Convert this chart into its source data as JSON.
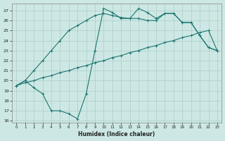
{
  "xlabel": "Humidex (Indice chaleur)",
  "background_color": "#cde8e4",
  "grid_color": "#aaccC8",
  "line_color": "#1e7570",
  "xlim": [
    -0.5,
    23.5
  ],
  "ylim": [
    15.8,
    27.7
  ],
  "xticks": [
    0,
    1,
    2,
    3,
    4,
    5,
    6,
    7,
    8,
    9,
    10,
    11,
    12,
    13,
    14,
    15,
    16,
    17,
    18,
    19,
    20,
    21,
    22,
    23
  ],
  "yticks": [
    16,
    17,
    18,
    19,
    20,
    21,
    22,
    23,
    24,
    25,
    26,
    27
  ],
  "line1_x": [
    0,
    1,
    2,
    3,
    4,
    5,
    6,
    7,
    8,
    9,
    10,
    11,
    12,
    13,
    14,
    15,
    16,
    17,
    18,
    19,
    20,
    21,
    22,
    23
  ],
  "line1_y": [
    19.5,
    19.8,
    20.0,
    20.3,
    20.5,
    20.8,
    21.0,
    21.3,
    21.5,
    21.8,
    22.0,
    22.3,
    22.5,
    22.8,
    23.0,
    23.3,
    23.5,
    23.8,
    24.0,
    24.3,
    24.5,
    24.8,
    25.0,
    23.0
  ],
  "line2_x": [
    0,
    1,
    2,
    3,
    4,
    5,
    6,
    7,
    8,
    9,
    10,
    11,
    12,
    13,
    14,
    15,
    16,
    17,
    18,
    19,
    20,
    21,
    22,
    23
  ],
  "line2_y": [
    19.5,
    20.0,
    21.0,
    22.0,
    23.0,
    24.0,
    25.0,
    25.5,
    26.0,
    26.5,
    26.7,
    26.5,
    26.3,
    26.2,
    26.2,
    26.0,
    26.0,
    26.7,
    26.7,
    25.8,
    25.8,
    24.5,
    23.3,
    23.0
  ],
  "line3_x": [
    0,
    1,
    2,
    3,
    4,
    5,
    6,
    7,
    8,
    9,
    10,
    11,
    12,
    13,
    14,
    15,
    16,
    17,
    18,
    19,
    20,
    21,
    22,
    23
  ],
  "line3_y": [
    19.5,
    20.0,
    19.3,
    18.7,
    17.0,
    17.0,
    16.7,
    16.2,
    18.7,
    23.0,
    27.2,
    26.8,
    26.2,
    26.2,
    27.2,
    26.8,
    26.2,
    26.7,
    26.7,
    25.8,
    25.8,
    24.5,
    23.3,
    23.0
  ]
}
